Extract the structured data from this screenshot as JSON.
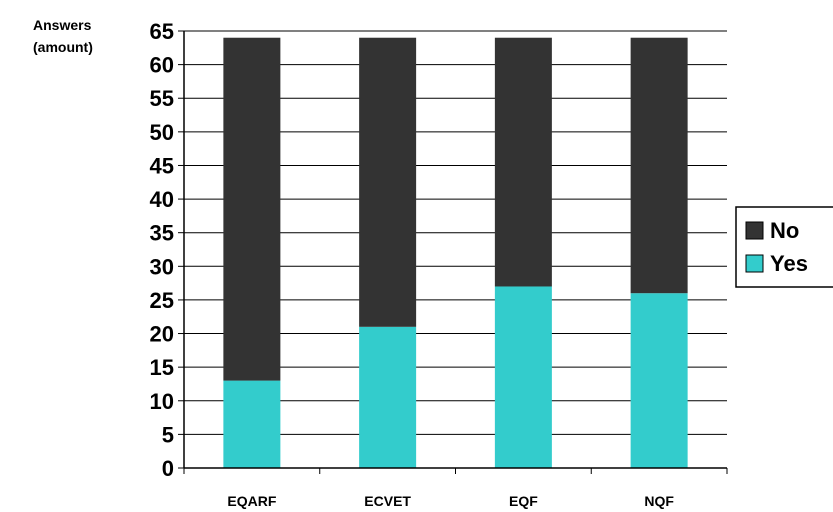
{
  "chart_data": {
    "type": "bar",
    "stacked": true,
    "ylabel": [
      "Answers",
      "(amount)"
    ],
    "xlabel": "",
    "categories": [
      "EQARF",
      "ECVET",
      "EQF",
      "NQF"
    ],
    "series": [
      {
        "name": "Yes",
        "values": [
          13,
          21,
          27,
          26
        ],
        "color": "#33cccc"
      },
      {
        "name": "No",
        "values": [
          51,
          43,
          37,
          38
        ],
        "color": "#333333"
      }
    ],
    "ylim": [
      0,
      65
    ],
    "yticks": [
      0,
      5,
      10,
      15,
      20,
      25,
      30,
      35,
      40,
      45,
      50,
      55,
      60,
      65
    ],
    "grid": true,
    "legend": {
      "placement": "right",
      "entries": [
        {
          "label": "No",
          "color": "#333333"
        },
        {
          "label": "Yes",
          "color": "#33cccc"
        }
      ]
    }
  }
}
